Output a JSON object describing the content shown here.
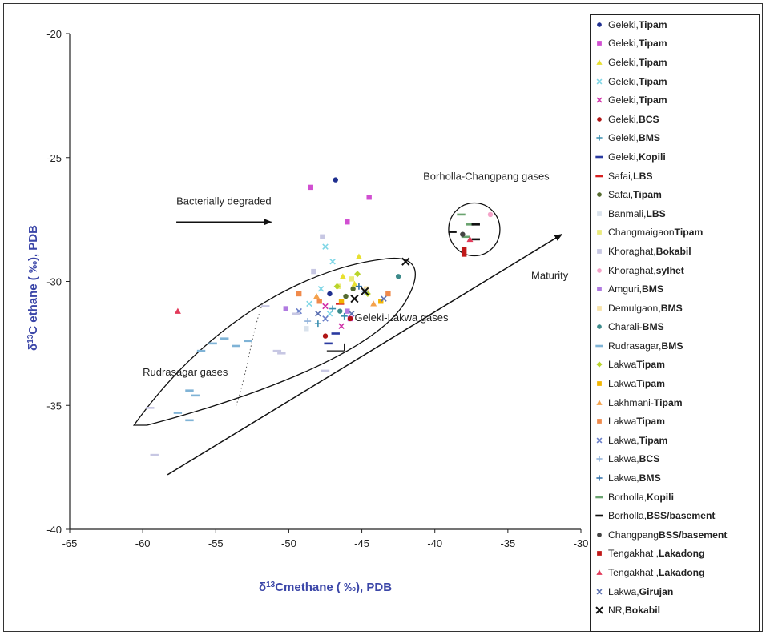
{
  "chart_data": {
    "type": "scatter",
    "xlabel_main": "δ",
    "xlabel_sup": "13",
    "xlabel_rest": "Cmethane ( ‰), PDB",
    "ylabel_main": "δ",
    "ylabel_sup": "13",
    "ylabel_rest": "C ethane ( ‰), PDB",
    "xlim": [
      -65,
      -30
    ],
    "ylim": [
      -40,
      -20
    ],
    "x_ticks": [
      "-65",
      "-60",
      "-55",
      "-50",
      "-45",
      "-40",
      "-35",
      "-30"
    ],
    "y_ticks": [
      "-20",
      "-25",
      "-30",
      "-35",
      "-40"
    ],
    "annotations": {
      "bacterial": "Bacterially degraded",
      "borholla": "Borholla-Changpang gases",
      "maturity": "Maturity",
      "geleki": "Geleki-Lakwa gases",
      "rudrasagar": "Rudrasagar gases"
    },
    "legend_placement": "right",
    "series": [
      {
        "name": "Geleki,",
        "fm": "Tipam",
        "color": "#1f2f8f",
        "marker": "circle",
        "points": [
          [
            -46.8,
            -25.9
          ],
          [
            -47.2,
            -30.5
          ]
        ]
      },
      {
        "name": "Geleki,",
        "fm": "Tipam",
        "color": "#d14fd1",
        "marker": "square",
        "points": [
          [
            -48.5,
            -26.2
          ],
          [
            -44.5,
            -26.6
          ],
          [
            -46,
            -27.6
          ],
          [
            -45.8,
            -31.5
          ]
        ]
      },
      {
        "name": "Geleki,",
        "fm": "Tipam",
        "color": "#e8e030",
        "marker": "triangle",
        "points": [
          [
            -45.2,
            -29
          ],
          [
            -46.3,
            -29.8
          ],
          [
            -45.5,
            -30.1
          ]
        ]
      },
      {
        "name": "Geleki,",
        "fm": "Tipam",
        "color": "#7fd6e6",
        "marker": "cross",
        "points": [
          [
            -47.5,
            -28.6
          ],
          [
            -47,
            -29.2
          ],
          [
            -47.8,
            -30.3
          ],
          [
            -48.6,
            -30.9
          ],
          [
            -47.2,
            -31.3
          ]
        ]
      },
      {
        "name": "Geleki,",
        "fm": "Tipam",
        "color": "#d02fa8",
        "marker": "cross",
        "points": [
          [
            -47.5,
            -31
          ],
          [
            -46.4,
            -31.8
          ]
        ]
      },
      {
        "name": "Geleki,",
        "fm": "BCS",
        "color": "#b01515",
        "marker": "circle",
        "points": [
          [
            -45.8,
            -31.5
          ],
          [
            -47.5,
            -32.2
          ]
        ]
      },
      {
        "name": "Geleki,",
        "fm": "BMS",
        "color": "#3a8fb0",
        "marker": "plus",
        "points": [
          [
            -47,
            -31.1
          ],
          [
            -46.2,
            -31.4
          ],
          [
            -48,
            -31.7
          ]
        ]
      },
      {
        "name": "Geleki,",
        "fm": "Kopili",
        "color": "#2a3aa0",
        "marker": "dash",
        "points": [
          [
            -46.8,
            -32.1
          ],
          [
            -47.3,
            -32.5
          ]
        ]
      },
      {
        "name": "Safai,",
        "fm": "LBS",
        "color": "#d82020",
        "marker": "dash",
        "points": [
          [
            -46.5,
            -30.9
          ]
        ]
      },
      {
        "name": "Safai,",
        "fm": "Tipam",
        "color": "#556b2f",
        "marker": "circle",
        "points": [
          [
            -45.6,
            -30.3
          ],
          [
            -46.1,
            -30.6
          ]
        ]
      },
      {
        "name": "Banmali,",
        "fm": "LBS",
        "color": "#d9e2ec",
        "marker": "square",
        "points": [
          [
            -48.8,
            -31.9
          ]
        ]
      },
      {
        "name": "Changmaigaon",
        "fm": "Tipam",
        "color": "#ebeb7a",
        "marker": "square",
        "points": [
          [
            -45.7,
            -29.9
          ],
          [
            -46.6,
            -30.2
          ]
        ]
      },
      {
        "name": "Khoraghat,",
        "fm": "Bokabil",
        "color": "#c7c7e3",
        "marker": "square",
        "points": [
          [
            -48.3,
            -29.6
          ],
          [
            -47.7,
            -28.2
          ]
        ]
      },
      {
        "name": "Khoraghat,",
        "fm": "sylhet",
        "color": "#f5a3c9",
        "marker": "circle",
        "points": [
          [
            -36.2,
            -27.3
          ]
        ]
      },
      {
        "name": "Amguri,",
        "fm": "BMS",
        "color": "#b07ae0",
        "marker": "square",
        "points": [
          [
            -46,
            -31.2
          ],
          [
            -50.2,
            -31.1
          ]
        ]
      },
      {
        "name": "Demulgaon,",
        "fm": "BMS",
        "color": "#f7e3a8",
        "marker": "square",
        "points": [
          [
            -44.7,
            -30.3
          ]
        ]
      },
      {
        "name": "Charali-",
        "fm": "BMS",
        "color": "#3c8a8a",
        "marker": "circle",
        "points": [
          [
            -42.5,
            -29.8
          ],
          [
            -46.5,
            -31.2
          ]
        ]
      },
      {
        "name": "Rudrasagar,",
        "fm": "BMS",
        "color": "#7fb3d6",
        "marker": "dash",
        "points": [
          [
            -56,
            -32.8
          ],
          [
            -55.2,
            -32.5
          ],
          [
            -54.4,
            -32.3
          ],
          [
            -53.6,
            -32.6
          ],
          [
            -52.8,
            -32.4
          ],
          [
            -56.8,
            -34.4
          ],
          [
            -56.4,
            -34.6
          ],
          [
            -57.6,
            -35.3
          ],
          [
            -56.8,
            -35.6
          ]
        ]
      },
      {
        "name": "Lakwa",
        "fm": "Tipam",
        "color": "#b8d42a",
        "marker": "diamond",
        "points": [
          [
            -45.3,
            -29.7
          ],
          [
            -44.6,
            -30.5
          ],
          [
            -46.7,
            -30.2
          ]
        ]
      },
      {
        "name": "Lakwa",
        "fm": "Tipam",
        "color": "#f2b500",
        "marker": "square",
        "points": [
          [
            -43.7,
            -30.8
          ],
          [
            -46.4,
            -30.8
          ]
        ]
      },
      {
        "name": "Lakhmani-",
        "fm": "Tipam",
        "color": "#f5a24c",
        "marker": "triangle",
        "points": [
          [
            -44.2,
            -30.9
          ],
          [
            -48.1,
            -30.6
          ]
        ]
      },
      {
        "name": "Lakwa",
        "fm": "Tipam",
        "color": "#f08a4b",
        "marker": "square",
        "points": [
          [
            -43.2,
            -30.5
          ],
          [
            -47.9,
            -30.8
          ],
          [
            -49.3,
            -30.5
          ]
        ]
      },
      {
        "name": "Lakwa,",
        "fm": "Tipam",
        "color": "#6a7fc9",
        "marker": "cross",
        "points": [
          [
            -47.5,
            -31.5
          ],
          [
            -49.3,
            -31.2
          ]
        ]
      },
      {
        "name": "Lakwa,",
        "fm": "BCS",
        "color": "#8fb1d9",
        "marker": "plus",
        "points": [
          [
            -44.8,
            -30.4
          ],
          [
            -48.7,
            -31.6
          ]
        ]
      },
      {
        "name": "Lakwa,",
        "fm": "BMS",
        "color": "#2f6fa8",
        "marker": "plus",
        "points": [
          [
            -45.2,
            -30.2
          ]
        ]
      },
      {
        "name": "Borholla,",
        "fm": "Kopili",
        "color": "#6aa36f",
        "marker": "dash",
        "points": [
          [
            -38.2,
            -27.3
          ],
          [
            -37.6,
            -27.7
          ],
          [
            -37.9,
            -28.2
          ]
        ]
      },
      {
        "name": "Borholla,",
        "fm": "BSS/basement",
        "color": "#111111",
        "marker": "dash",
        "points": [
          [
            -38.8,
            -28
          ],
          [
            -37.2,
            -28.3
          ],
          [
            -37.2,
            -27.7
          ]
        ]
      },
      {
        "name": "Changpang",
        "fm": "BSS/basement",
        "color": "#444444",
        "marker": "circle",
        "points": [
          [
            -38.1,
            -28.1
          ]
        ]
      },
      {
        "name": "Tengakhat ,",
        "fm": "Lakadong",
        "color": "#c01818",
        "marker": "square",
        "points": [
          [
            -38,
            -28.7
          ],
          [
            -38,
            -28.9
          ]
        ]
      },
      {
        "name": "Tengakhat ,",
        "fm": "Lakadong",
        "color": "#e23a5a",
        "marker": "triangle",
        "points": [
          [
            -57.6,
            -31.2
          ],
          [
            -37.6,
            -28.3
          ]
        ]
      },
      {
        "name": "Lakwa,",
        "fm": "Girujan",
        "color": "#5a6fb0",
        "marker": "cross",
        "points": [
          [
            -43.5,
            -30.7
          ],
          [
            -45.7,
            -31.3
          ],
          [
            -48,
            -31.3
          ]
        ]
      },
      {
        "name": "NR,",
        "fm": "Bokabil",
        "color": "#111111",
        "marker": "bigx",
        "points": [
          [
            -42,
            -29.2
          ],
          [
            -44.8,
            -30.4
          ],
          [
            -45.5,
            -30.7
          ]
        ]
      }
    ],
    "extra_points": [
      {
        "color": "#c7c7e3",
        "marker": "dash",
        "points": [
          [
            -59.5,
            -35.1
          ],
          [
            -59.2,
            -37
          ],
          [
            -51.6,
            -31
          ],
          [
            -50.5,
            -32.9
          ],
          [
            -50.8,
            -32.8
          ],
          [
            -47.5,
            -33.6
          ],
          [
            -49.5,
            -31.3
          ]
        ]
      }
    ]
  }
}
